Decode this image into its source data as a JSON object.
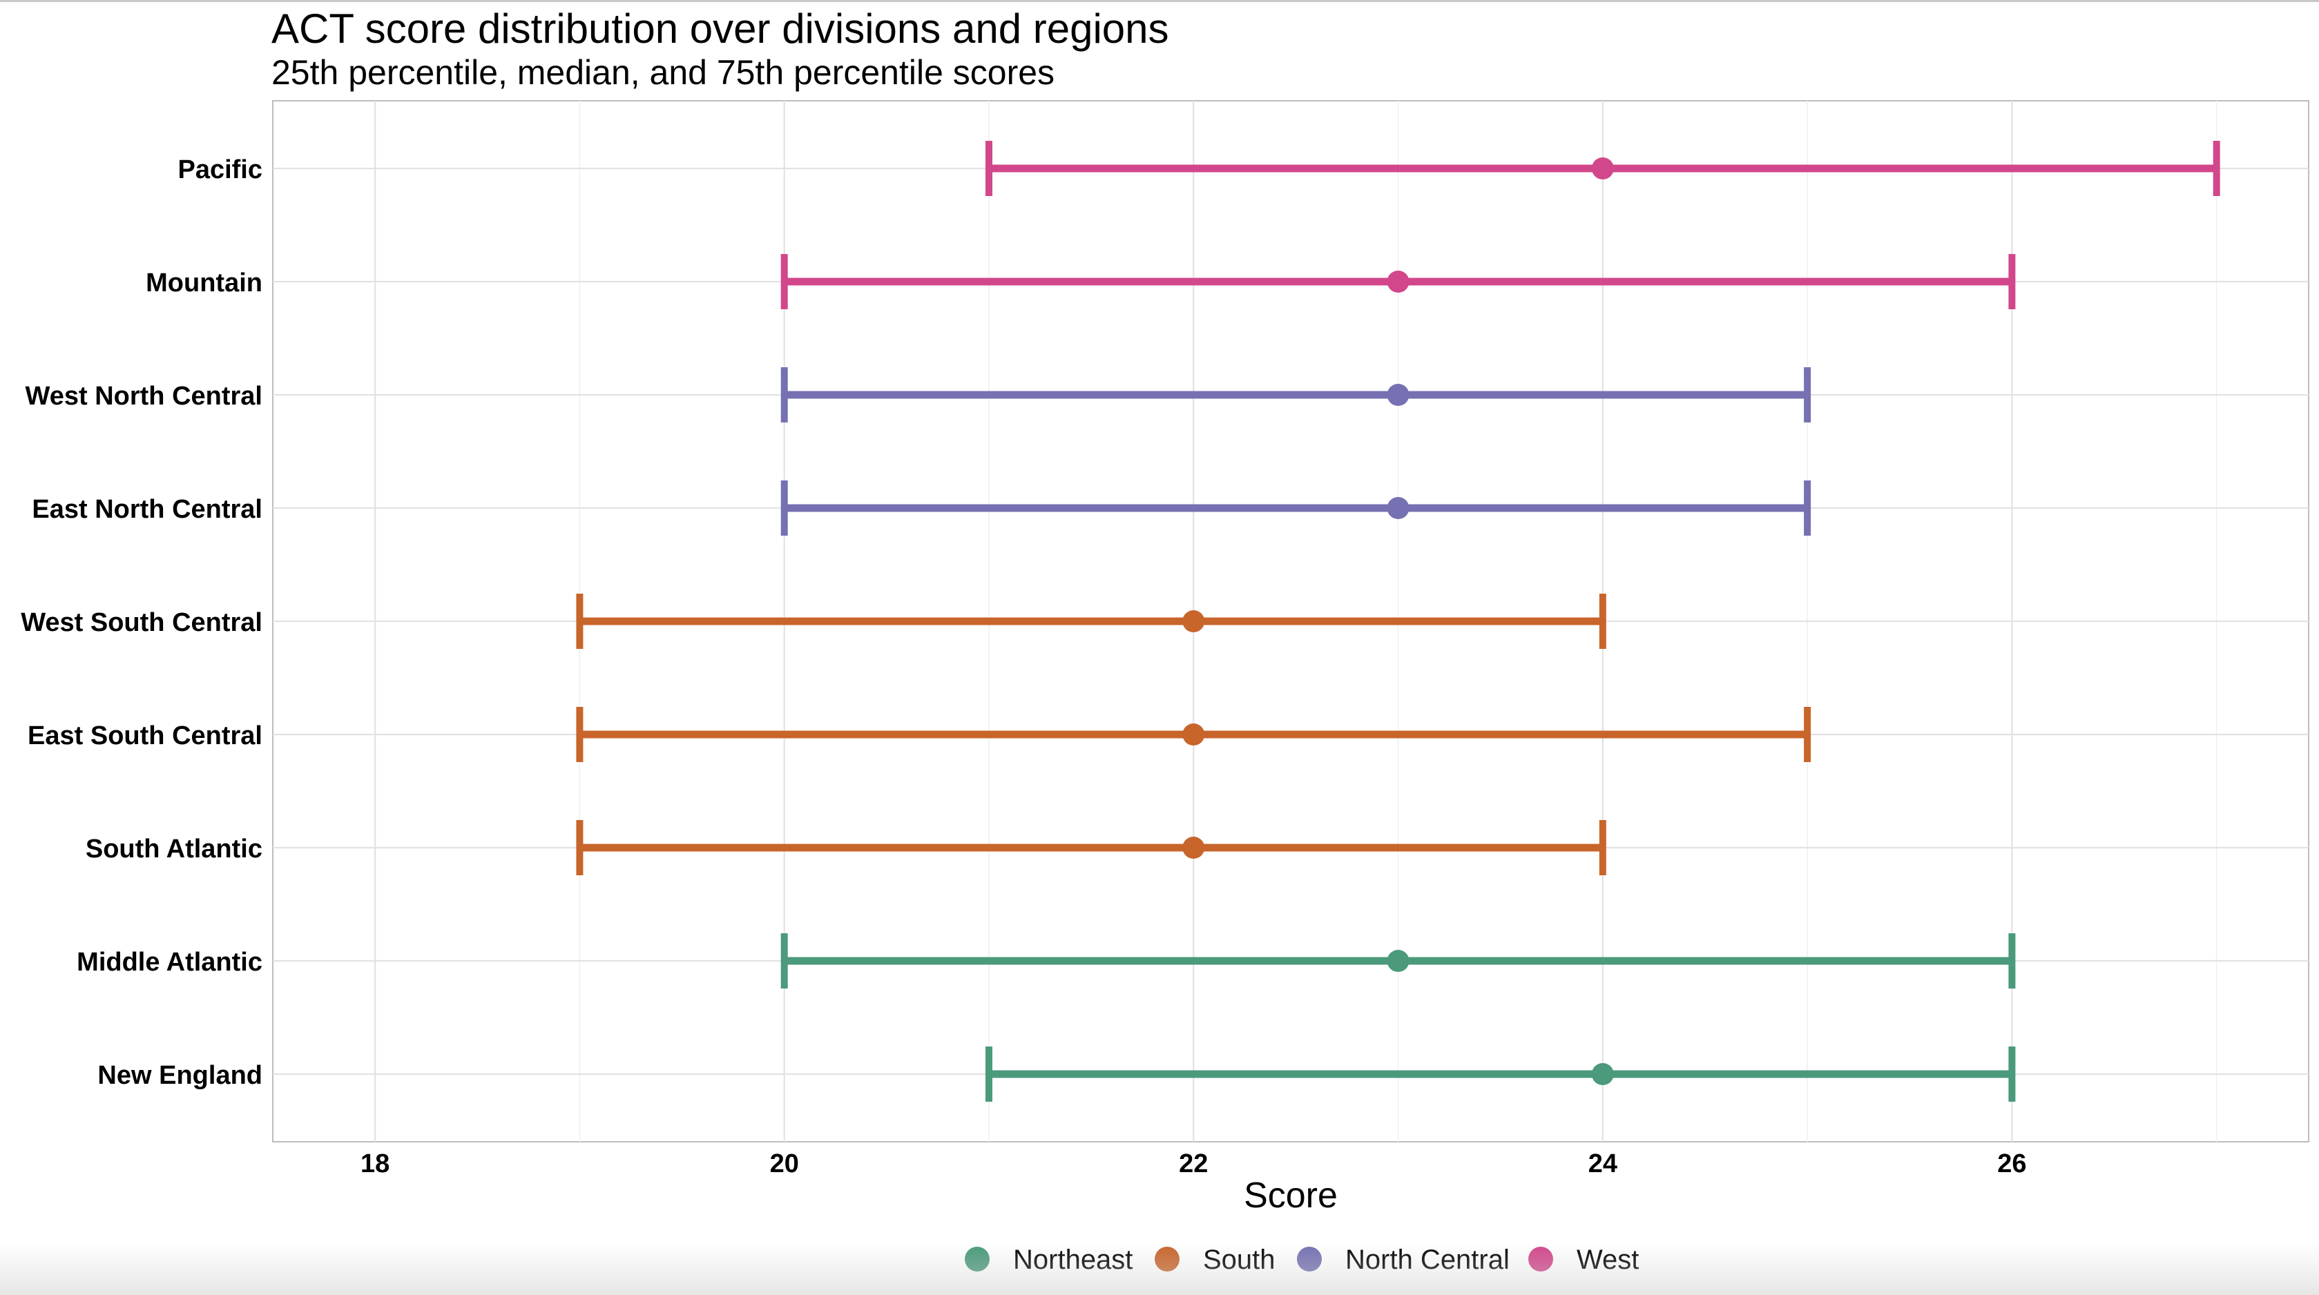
{
  "chart_data": {
    "type": "errorbar",
    "title": "ACT score distribution over divisions and regions",
    "subtitle": "25th percentile, median, and 75th percentile scores",
    "xlabel": "Score",
    "ylabel": "",
    "xlim": [
      17.5,
      27.45
    ],
    "xticks": [
      18,
      20,
      22,
      24,
      26
    ],
    "grid": true,
    "legend_position": "bottom",
    "regions": [
      {
        "name": "Northeast",
        "color": "#4a9a7b"
      },
      {
        "name": "South",
        "color": "#c8652b"
      },
      {
        "name": "North Central",
        "color": "#7571b2"
      },
      {
        "name": "West",
        "color": "#d2478b"
      }
    ],
    "divisions": [
      {
        "name": "New England",
        "region": "Northeast",
        "p25": 21,
        "median": 24,
        "p75": 26
      },
      {
        "name": "Middle Atlantic",
        "region": "Northeast",
        "p25": 20,
        "median": 23,
        "p75": 26
      },
      {
        "name": "South Atlantic",
        "region": "South",
        "p25": 19,
        "median": 22,
        "p75": 24
      },
      {
        "name": "East South Central",
        "region": "South",
        "p25": 19,
        "median": 22,
        "p75": 25
      },
      {
        "name": "West South Central",
        "region": "South",
        "p25": 19,
        "median": 22,
        "p75": 24
      },
      {
        "name": "East North Central",
        "region": "North Central",
        "p25": 20,
        "median": 23,
        "p75": 25
      },
      {
        "name": "West North Central",
        "region": "North Central",
        "p25": 20,
        "median": 23,
        "p75": 25
      },
      {
        "name": "Mountain",
        "region": "West",
        "p25": 20,
        "median": 23,
        "p75": 26
      },
      {
        "name": "Pacific",
        "region": "West",
        "p25": 21,
        "median": 24,
        "p75": 27
      }
    ]
  }
}
